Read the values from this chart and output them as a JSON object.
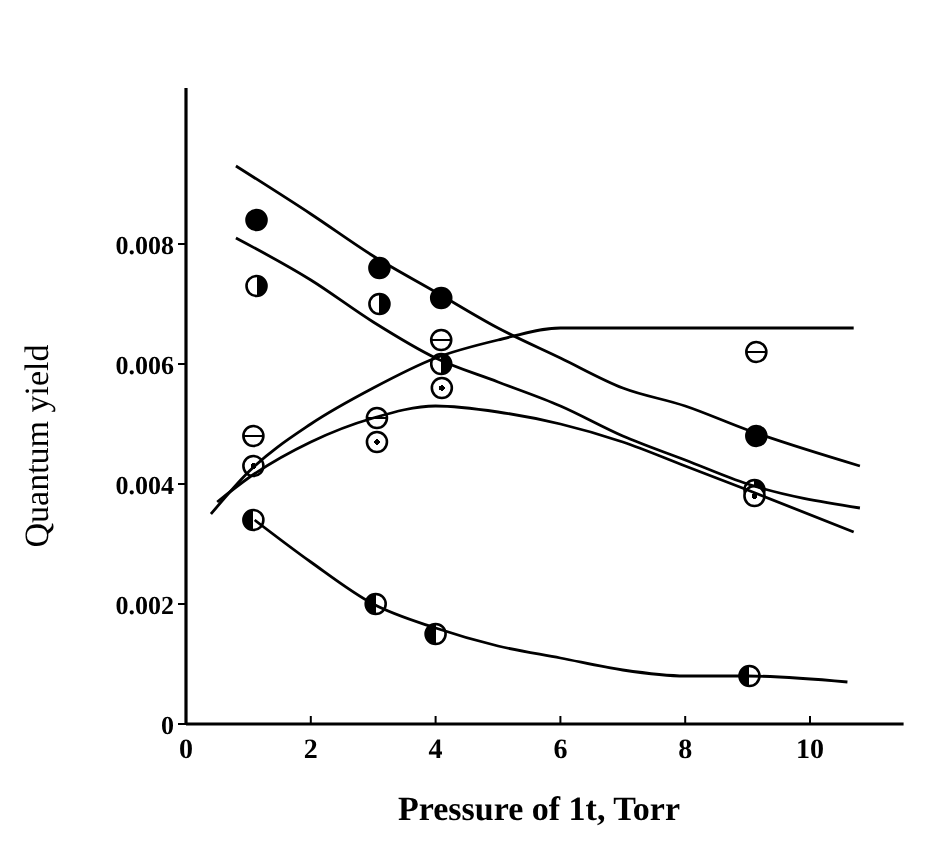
{
  "chart_data": {
    "type": "scatter",
    "xlabel": "Pressure of 1t, Torr",
    "ylabel": "Quantum yield",
    "xlim": [
      0,
      11.5
    ],
    "ylim": [
      0,
      0.0106
    ],
    "xticks": [
      0,
      2,
      4,
      6,
      8,
      10
    ],
    "yticks": [
      0,
      0.002,
      0.004,
      0.006,
      0.008
    ],
    "grid": false,
    "series": [
      {
        "marker": "circle",
        "color": "#000000",
        "x": [
          1.13,
          3.1,
          4.09,
          9.14
        ],
        "values": [
          0.0084,
          0.0076,
          0.0071,
          0.0048
        ]
      },
      {
        "marker": "circle",
        "color": "#000000",
        "x": [
          1.13,
          3.1,
          4.09,
          9.11
        ],
        "values": [
          0.0073,
          0.007,
          0.006,
          0.0039
        ]
      },
      {
        "marker": "circle",
        "color": "#000000",
        "x": [
          1.08,
          3.06,
          4.09,
          9.14
        ],
        "values": [
          0.0048,
          0.0051,
          0.0064,
          0.0062
        ]
      },
      {
        "marker": "circle",
        "color": "#000000",
        "x": [
          1.08,
          3.06,
          4.1,
          9.11
        ],
        "values": [
          0.0043,
          0.0047,
          0.0056,
          0.0038
        ]
      },
      {
        "marker": "circle",
        "color": "#000000",
        "x": [
          1.08,
          3.04,
          4.0,
          9.03
        ],
        "values": [
          0.0034,
          0.002,
          0.0015,
          0.0008
        ]
      },
      {
        "type": "line",
        "marker": "none",
        "line_style": "solid",
        "color": "#000000",
        "x": [
          0.8,
          2,
          3,
          4,
          5,
          6,
          7,
          8,
          9,
          10.8
        ],
        "values": [
          0.0093,
          0.0085,
          0.0078,
          0.0072,
          0.0066,
          0.0061,
          0.0056,
          0.0053,
          0.0049,
          0.0043
        ]
      },
      {
        "type": "line",
        "marker": "none",
        "line_style": "solid",
        "color": "#000000",
        "x": [
          0.8,
          2,
          3,
          4,
          5,
          6,
          7,
          8,
          9,
          10.8
        ],
        "values": [
          0.0081,
          0.0074,
          0.0067,
          0.0061,
          0.0057,
          0.0053,
          0.0048,
          0.0044,
          0.004,
          0.0036
        ]
      },
      {
        "type": "line",
        "marker": "none",
        "line_style": "solid",
        "color": "#000000",
        "x": [
          0.4,
          1,
          2,
          3,
          4,
          5,
          6,
          7,
          8,
          10.7
        ],
        "values": [
          0.0035,
          0.0042,
          0.005,
          0.0056,
          0.0061,
          0.0064,
          0.0066,
          0.0066,
          0.0066,
          0.0066
        ]
      },
      {
        "type": "line",
        "marker": "none",
        "line_style": "solid",
        "color": "#000000",
        "x": [
          0.5,
          1,
          2,
          3,
          4,
          5,
          6,
          7,
          8,
          9,
          10.7
        ],
        "values": [
          0.0037,
          0.0041,
          0.0047,
          0.0051,
          0.0053,
          0.0052,
          0.005,
          0.0047,
          0.0043,
          0.0039,
          0.0032
        ]
      },
      {
        "type": "line",
        "marker": "none",
        "line_style": "solid",
        "color": "#000000",
        "x": [
          1.1,
          2,
          3,
          4,
          5,
          6,
          7,
          8,
          9,
          10.6
        ],
        "values": [
          0.0034,
          0.0027,
          0.002,
          0.0016,
          0.0013,
          0.0011,
          0.0009,
          0.0008,
          0.0008,
          0.0007
        ]
      }
    ]
  }
}
